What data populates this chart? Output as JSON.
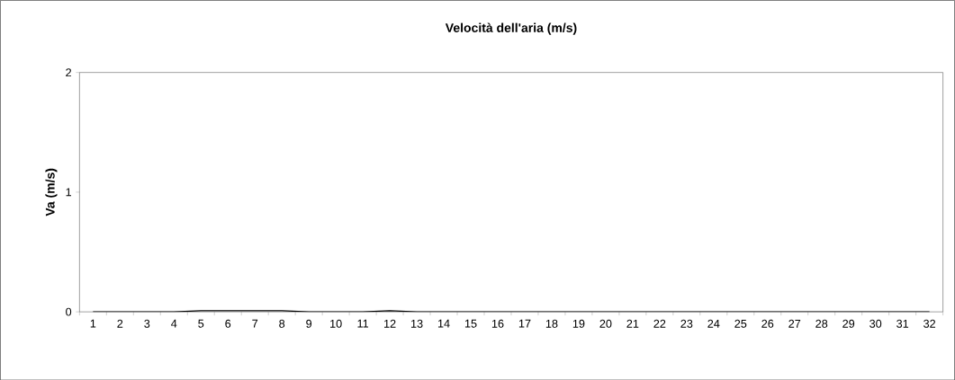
{
  "chart_data": {
    "type": "line",
    "title": "Velocità dell'aria (m/s)",
    "ylabel": "Va (m/s)",
    "categories": [
      "1",
      "2",
      "3",
      "4",
      "5",
      "6",
      "7",
      "8",
      "9",
      "10",
      "11",
      "12",
      "13",
      "14",
      "15",
      "16",
      "17",
      "18",
      "19",
      "20",
      "21",
      "22",
      "23",
      "24",
      "25",
      "26",
      "27",
      "28",
      "29",
      "30",
      "31",
      "32"
    ],
    "values": [
      0,
      0,
      0,
      0,
      0.01,
      0.01,
      0.01,
      0.01,
      0,
      0,
      0,
      0.01,
      0,
      0,
      0,
      0,
      0,
      0,
      0,
      0,
      0,
      0,
      0,
      0,
      0,
      0,
      0,
      0,
      0,
      0,
      0,
      0
    ],
    "color": "#000000",
    "ylim": [
      0,
      2
    ],
    "yticks": [
      0,
      1,
      2
    ],
    "grid": false,
    "marker": "none"
  }
}
